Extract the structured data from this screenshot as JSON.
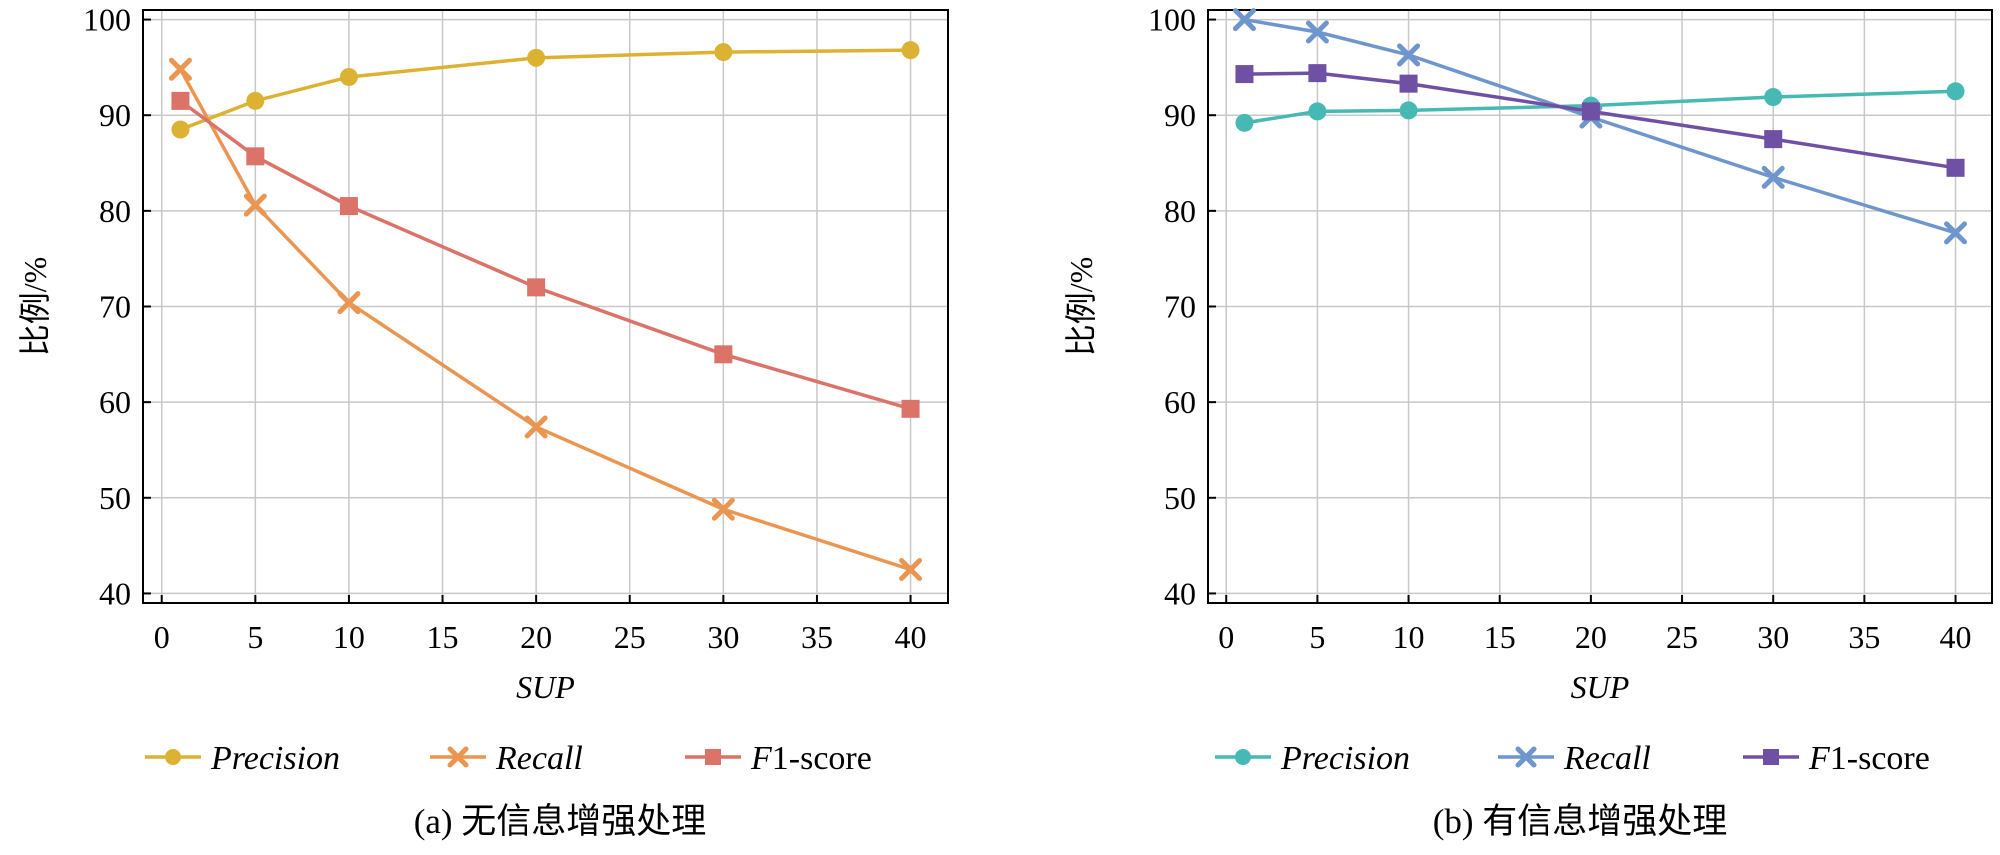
{
  "chart_data": [
    {
      "type": "line",
      "caption": "(a) 无信息增强处理",
      "xlabel": "SUP",
      "ylabel": "比例/%",
      "xlim": [
        -1,
        42
      ],
      "ylim": [
        39,
        101
      ],
      "xticks": [
        0,
        5,
        10,
        15,
        20,
        25,
        30,
        35,
        40
      ],
      "yticks": [
        40,
        50,
        60,
        70,
        80,
        90,
        100
      ],
      "grid": true,
      "legend_position": "bottom",
      "x": [
        1,
        5,
        10,
        20,
        30,
        40
      ],
      "series": [
        {
          "name": "Precision",
          "italic_part": "Precision",
          "rest_part": "",
          "color": "#dcb232",
          "marker": "circle",
          "values": [
            88.5,
            91.5,
            94.0,
            96.0,
            96.6,
            96.8
          ]
        },
        {
          "name": "Recall",
          "italic_part": "Recall",
          "rest_part": "",
          "color": "#eb9650",
          "marker": "x",
          "values": [
            94.8,
            80.6,
            70.4,
            57.4,
            48.8,
            42.5
          ]
        },
        {
          "name": "F1-score",
          "italic_part": "F",
          "rest_part": "1-score",
          "color": "#dc7368",
          "marker": "square",
          "values": [
            91.5,
            85.7,
            80.5,
            72.0,
            65.0,
            59.3
          ]
        }
      ]
    },
    {
      "type": "line",
      "caption": "(b) 有信息增强处理",
      "xlabel": "SUP",
      "ylabel": "比例/%",
      "xlim": [
        -1,
        42
      ],
      "ylim": [
        39,
        101
      ],
      "xticks": [
        0,
        5,
        10,
        15,
        20,
        25,
        30,
        35,
        40
      ],
      "yticks": [
        40,
        50,
        60,
        70,
        80,
        90,
        100
      ],
      "grid": true,
      "legend_position": "bottom",
      "x": [
        1,
        5,
        10,
        20,
        30,
        40
      ],
      "series": [
        {
          "name": "Precision",
          "italic_part": "Precision",
          "rest_part": "",
          "color": "#46b9b4",
          "marker": "circle",
          "values": [
            89.2,
            90.4,
            90.5,
            91.0,
            91.9,
            92.5
          ]
        },
        {
          "name": "Recall",
          "italic_part": "Recall",
          "rest_part": "",
          "color": "#6e96cd",
          "marker": "x",
          "values": [
            100.0,
            98.7,
            96.3,
            89.8,
            83.5,
            77.7
          ]
        },
        {
          "name": "F1-score",
          "italic_part": "F",
          "rest_part": "1-score",
          "color": "#7050a5",
          "marker": "square",
          "values": [
            94.3,
            94.4,
            93.3,
            90.4,
            87.5,
            84.5
          ]
        }
      ]
    }
  ]
}
